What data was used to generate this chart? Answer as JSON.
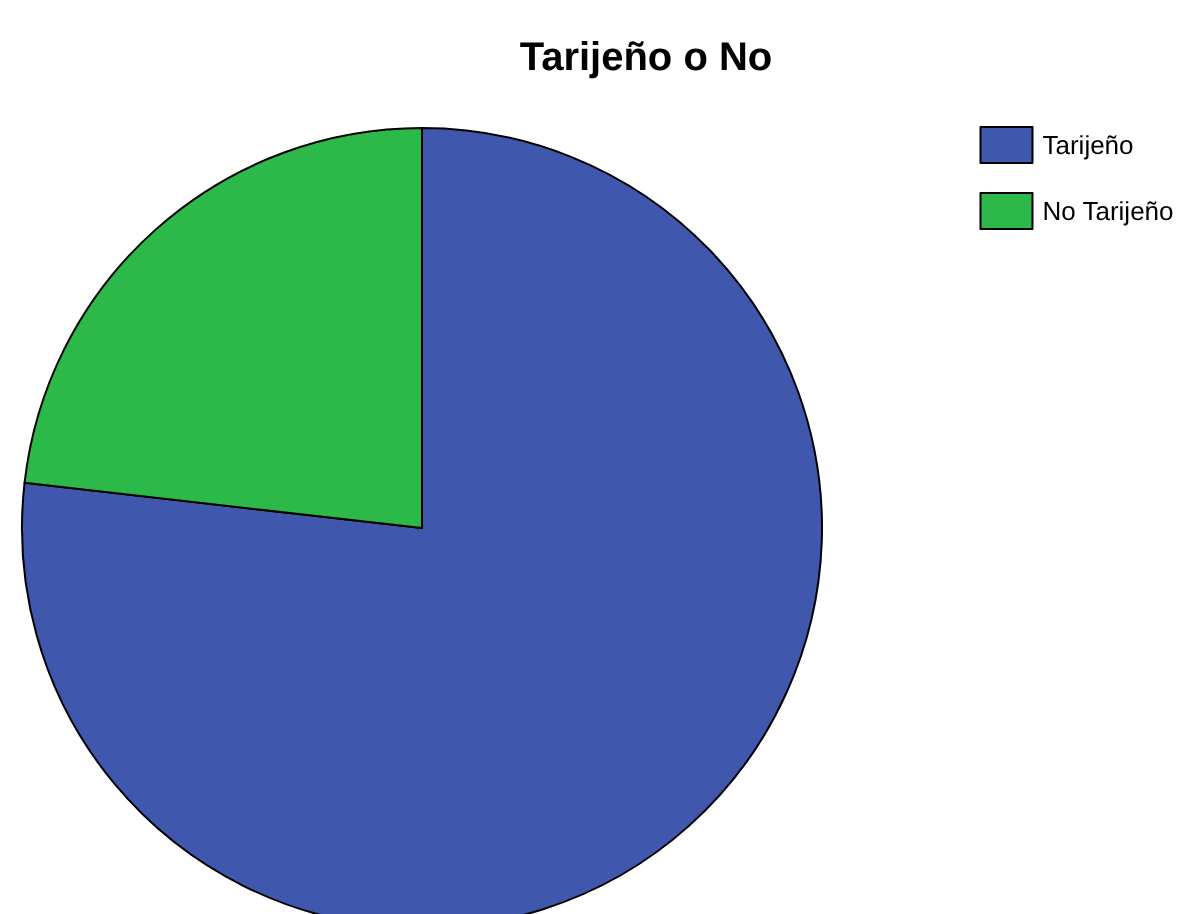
{
  "chart_data": {
    "type": "pie",
    "title": "Tarijeño o No",
    "categories": [
      "Tarijeño",
      "No Tarijeño"
    ],
    "values": [
      76.8,
      23.2
    ],
    "colors": [
      "#3f58ad",
      "#2db84a"
    ],
    "legend": "top right"
  }
}
